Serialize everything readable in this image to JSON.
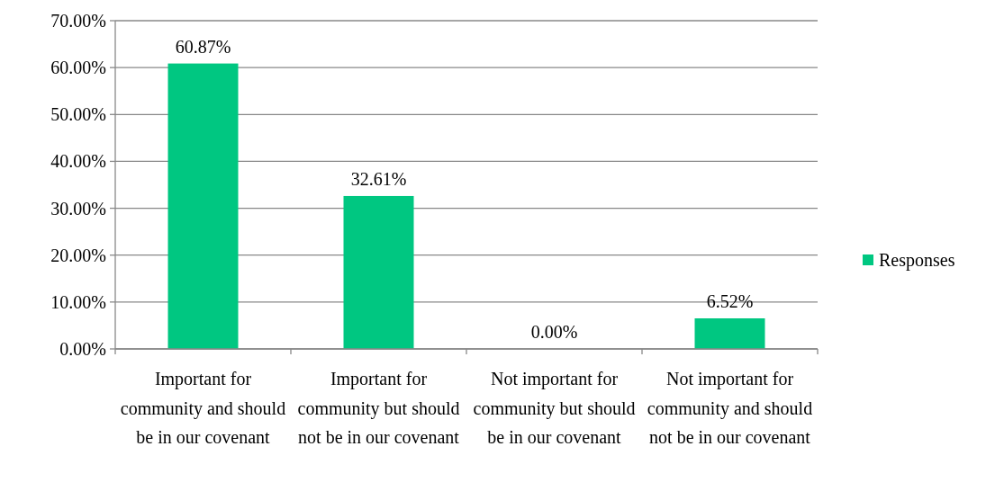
{
  "chart_data": {
    "type": "bar",
    "categories": [
      "Important for community and should be in our covenant",
      "Important for community but should not be in our covenant",
      "Not important for community but should be in our covenant",
      "Not important for community and should not be in our covenant"
    ],
    "series": [
      {
        "name": "Responses",
        "color": "#00c781",
        "values": [
          60.87,
          32.61,
          0,
          6.52
        ],
        "value_labels": [
          "60.87%",
          "32.61%",
          "0.00%",
          "6.52%"
        ]
      }
    ],
    "ylim": [
      0,
      70
    ],
    "yticks": [
      {
        "value": 0,
        "label": "0.00%"
      },
      {
        "value": 10,
        "label": "10.00%"
      },
      {
        "value": 20,
        "label": "20.00%"
      },
      {
        "value": 30,
        "label": "30.00%"
      },
      {
        "value": 40,
        "label": "40.00%"
      },
      {
        "value": 50,
        "label": "50.00%"
      },
      {
        "value": 60,
        "label": "60.00%"
      },
      {
        "value": 70,
        "label": "70.00%"
      }
    ],
    "grid": "y",
    "legend": "right"
  }
}
